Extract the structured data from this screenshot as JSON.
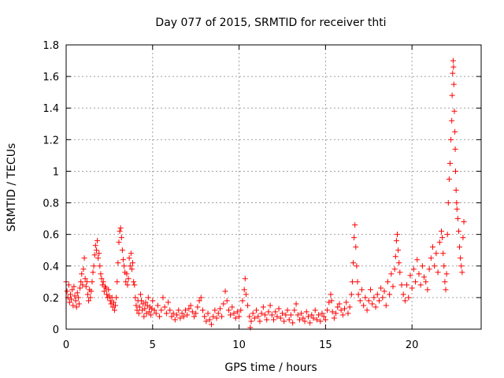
{
  "chart_data": {
    "type": "scatter",
    "title": "Day 077 of 2015, SRMTID for receiver thti",
    "xlabel": "GPS time / hours",
    "ylabel": "SRMTID / TECUs",
    "xlim": [
      0,
      24
    ],
    "ylim": [
      0,
      1.8
    ],
    "xticks": [
      0,
      5,
      10,
      15,
      20
    ],
    "xtick_labels": [
      "0",
      "5",
      "10",
      "15",
      "20"
    ],
    "yticks": [
      0,
      0.2,
      0.4,
      0.6,
      0.8,
      1.0,
      1.2,
      1.4,
      1.6,
      1.8
    ],
    "ytick_labels": [
      "0",
      "0.2",
      "0.4",
      "0.6",
      "0.8",
      "1",
      "1.2",
      "1.4",
      "1.6",
      "1.8"
    ],
    "grid": true,
    "marker": "+",
    "color": "#ff0000",
    "series": [
      {
        "name": "thti",
        "points": [
          [
            0.0,
            0.3
          ],
          [
            0.05,
            0.24
          ],
          [
            0.1,
            0.2
          ],
          [
            0.15,
            0.28
          ],
          [
            0.2,
            0.17
          ],
          [
            0.25,
            0.22
          ],
          [
            0.3,
            0.19
          ],
          [
            0.35,
            0.25
          ],
          [
            0.4,
            0.15
          ],
          [
            0.45,
            0.27
          ],
          [
            0.5,
            0.21
          ],
          [
            0.55,
            0.18
          ],
          [
            0.6,
            0.14
          ],
          [
            0.65,
            0.23
          ],
          [
            0.7,
            0.2
          ],
          [
            0.75,
            0.16
          ],
          [
            0.8,
            0.26
          ],
          [
            0.85,
            0.3
          ],
          [
            0.9,
            0.35
          ],
          [
            0.95,
            0.28
          ],
          [
            1.0,
            0.38
          ],
          [
            1.05,
            0.45
          ],
          [
            1.1,
            0.32
          ],
          [
            1.15,
            0.27
          ],
          [
            1.2,
            0.3
          ],
          [
            1.25,
            0.22
          ],
          [
            1.3,
            0.18
          ],
          [
            1.35,
            0.25
          ],
          [
            1.4,
            0.2
          ],
          [
            1.45,
            0.24
          ],
          [
            1.5,
            0.3
          ],
          [
            1.55,
            0.36
          ],
          [
            1.6,
            0.4
          ],
          [
            1.65,
            0.47
          ],
          [
            1.7,
            0.53
          ],
          [
            1.75,
            0.5
          ],
          [
            1.8,
            0.56
          ],
          [
            1.85,
            0.45
          ],
          [
            1.9,
            0.48
          ],
          [
            1.95,
            0.4
          ],
          [
            2.0,
            0.35
          ],
          [
            2.05,
            0.32
          ],
          [
            2.1,
            0.28
          ],
          [
            2.15,
            0.3
          ],
          [
            2.2,
            0.24
          ],
          [
            2.25,
            0.27
          ],
          [
            2.3,
            0.26
          ],
          [
            2.35,
            0.22
          ],
          [
            2.4,
            0.2
          ],
          [
            2.45,
            0.25
          ],
          [
            2.5,
            0.21
          ],
          [
            2.55,
            0.18
          ],
          [
            2.6,
            0.16
          ],
          [
            2.65,
            0.2
          ],
          [
            2.7,
            0.14
          ],
          [
            2.75,
            0.17
          ],
          [
            2.8,
            0.12
          ],
          [
            2.85,
            0.15
          ],
          [
            2.9,
            0.2
          ],
          [
            2.95,
            0.3
          ],
          [
            3.0,
            0.42
          ],
          [
            3.05,
            0.55
          ],
          [
            3.1,
            0.62
          ],
          [
            3.15,
            0.64
          ],
          [
            3.2,
            0.58
          ],
          [
            3.25,
            0.5
          ],
          [
            3.3,
            0.44
          ],
          [
            3.35,
            0.4
          ],
          [
            3.4,
            0.36
          ],
          [
            3.45,
            0.3
          ],
          [
            3.5,
            0.35
          ],
          [
            3.55,
            0.28
          ],
          [
            3.6,
            0.32
          ],
          [
            3.65,
            0.45
          ],
          [
            3.7,
            0.4
          ],
          [
            3.75,
            0.48
          ],
          [
            3.8,
            0.38
          ],
          [
            3.85,
            0.42
          ],
          [
            3.9,
            0.3
          ],
          [
            3.95,
            0.28
          ],
          [
            4.0,
            0.2
          ],
          [
            4.05,
            0.15
          ],
          [
            4.1,
            0.12
          ],
          [
            4.15,
            0.18
          ],
          [
            4.2,
            0.1
          ],
          [
            4.25,
            0.14
          ],
          [
            4.3,
            0.22
          ],
          [
            4.35,
            0.18
          ],
          [
            4.4,
            0.12
          ],
          [
            4.45,
            0.16
          ],
          [
            4.5,
            0.08
          ],
          [
            4.55,
            0.13
          ],
          [
            4.6,
            0.17
          ],
          [
            4.65,
            0.1
          ],
          [
            4.7,
            0.15
          ],
          [
            4.75,
            0.2
          ],
          [
            4.8,
            0.11
          ],
          [
            4.85,
            0.14
          ],
          [
            4.9,
            0.09
          ],
          [
            4.95,
            0.13
          ],
          [
            5.0,
            0.18
          ],
          [
            5.1,
            0.12
          ],
          [
            5.2,
            0.1
          ],
          [
            5.3,
            0.15
          ],
          [
            5.4,
            0.08
          ],
          [
            5.5,
            0.12
          ],
          [
            5.6,
            0.2
          ],
          [
            5.7,
            0.14
          ],
          [
            5.8,
            0.1
          ],
          [
            5.9,
            0.17
          ],
          [
            6.0,
            0.12
          ],
          [
            6.1,
            0.08
          ],
          [
            6.2,
            0.1
          ],
          [
            6.3,
            0.06
          ],
          [
            6.4,
            0.09
          ],
          [
            6.5,
            0.12
          ],
          [
            6.6,
            0.07
          ],
          [
            6.7,
            0.1
          ],
          [
            6.8,
            0.08
          ],
          [
            6.9,
            0.12
          ],
          [
            7.0,
            0.09
          ],
          [
            7.1,
            0.13
          ],
          [
            7.2,
            0.15
          ],
          [
            7.3,
            0.11
          ],
          [
            7.4,
            0.08
          ],
          [
            7.5,
            0.1
          ],
          [
            7.6,
            0.14
          ],
          [
            7.7,
            0.18
          ],
          [
            7.8,
            0.2
          ],
          [
            7.9,
            0.12
          ],
          [
            8.0,
            0.08
          ],
          [
            8.1,
            0.05
          ],
          [
            8.2,
            0.1
          ],
          [
            8.3,
            0.06
          ],
          [
            8.4,
            0.03
          ],
          [
            8.5,
            0.08
          ],
          [
            8.6,
            0.12
          ],
          [
            8.7,
            0.07
          ],
          [
            8.8,
            0.1
          ],
          [
            8.9,
            0.13
          ],
          [
            9.0,
            0.08
          ],
          [
            9.1,
            0.16
          ],
          [
            9.2,
            0.24
          ],
          [
            9.3,
            0.18
          ],
          [
            9.4,
            0.12
          ],
          [
            9.5,
            0.09
          ],
          [
            9.6,
            0.14
          ],
          [
            9.7,
            0.1
          ],
          [
            9.8,
            0.07
          ],
          [
            9.9,
            0.11
          ],
          [
            10.0,
            0.08
          ],
          [
            10.1,
            0.12
          ],
          [
            10.2,
            0.18
          ],
          [
            10.3,
            0.25
          ],
          [
            10.35,
            0.32
          ],
          [
            10.4,
            0.22
          ],
          [
            10.5,
            0.15
          ],
          [
            10.6,
            0.08
          ],
          [
            10.65,
            0.01
          ],
          [
            10.7,
            0.05
          ],
          [
            10.8,
            0.1
          ],
          [
            10.9,
            0.07
          ],
          [
            11.0,
            0.12
          ],
          [
            11.1,
            0.08
          ],
          [
            11.2,
            0.05
          ],
          [
            11.3,
            0.1
          ],
          [
            11.4,
            0.14
          ],
          [
            11.5,
            0.09
          ],
          [
            11.6,
            0.06
          ],
          [
            11.7,
            0.11
          ],
          [
            11.8,
            0.15
          ],
          [
            11.9,
            0.09
          ],
          [
            12.0,
            0.06
          ],
          [
            12.1,
            0.11
          ],
          [
            12.2,
            0.08
          ],
          [
            12.3,
            0.13
          ],
          [
            12.4,
            0.07
          ],
          [
            12.5,
            0.1
          ],
          [
            12.6,
            0.05
          ],
          [
            12.7,
            0.09
          ],
          [
            12.8,
            0.12
          ],
          [
            12.9,
            0.06
          ],
          [
            13.0,
            0.09
          ],
          [
            13.1,
            0.04
          ],
          [
            13.2,
            0.12
          ],
          [
            13.3,
            0.16
          ],
          [
            13.4,
            0.09
          ],
          [
            13.5,
            0.06
          ],
          [
            13.6,
            0.1
          ],
          [
            13.7,
            0.07
          ],
          [
            13.8,
            0.05
          ],
          [
            13.9,
            0.11
          ],
          [
            14.0,
            0.08
          ],
          [
            14.1,
            0.04
          ],
          [
            14.2,
            0.09
          ],
          [
            14.3,
            0.07
          ],
          [
            14.4,
            0.12
          ],
          [
            14.5,
            0.06
          ],
          [
            14.6,
            0.09
          ],
          [
            14.7,
            0.05
          ],
          [
            14.8,
            0.1
          ],
          [
            14.9,
            0.08
          ],
          [
            15.0,
            0.06
          ],
          [
            15.1,
            0.12
          ],
          [
            15.2,
            0.17
          ],
          [
            15.3,
            0.22
          ],
          [
            15.35,
            0.18
          ],
          [
            15.4,
            0.11
          ],
          [
            15.5,
            0.07
          ],
          [
            15.6,
            0.1
          ],
          [
            15.7,
            0.14
          ],
          [
            15.8,
            0.16
          ],
          [
            15.9,
            0.12
          ],
          [
            16.0,
            0.09
          ],
          [
            16.1,
            0.13
          ],
          [
            16.2,
            0.17
          ],
          [
            16.3,
            0.1
          ],
          [
            16.4,
            0.14
          ],
          [
            16.5,
            0.22
          ],
          [
            16.55,
            0.3
          ],
          [
            16.6,
            0.42
          ],
          [
            16.65,
            0.58
          ],
          [
            16.7,
            0.66
          ],
          [
            16.75,
            0.52
          ],
          [
            16.8,
            0.4
          ],
          [
            16.85,
            0.3
          ],
          [
            16.9,
            0.22
          ],
          [
            17.0,
            0.18
          ],
          [
            17.1,
            0.25
          ],
          [
            17.2,
            0.15
          ],
          [
            17.3,
            0.2
          ],
          [
            17.4,
            0.12
          ],
          [
            17.5,
            0.18
          ],
          [
            17.6,
            0.25
          ],
          [
            17.7,
            0.16
          ],
          [
            17.8,
            0.2
          ],
          [
            17.9,
            0.14
          ],
          [
            18.0,
            0.22
          ],
          [
            18.1,
            0.18
          ],
          [
            18.2,
            0.26
          ],
          [
            18.3,
            0.2
          ],
          [
            18.4,
            0.24
          ],
          [
            18.5,
            0.15
          ],
          [
            18.6,
            0.3
          ],
          [
            18.7,
            0.22
          ],
          [
            18.8,
            0.35
          ],
          [
            18.9,
            0.27
          ],
          [
            19.0,
            0.38
          ],
          [
            19.05,
            0.46
          ],
          [
            19.1,
            0.56
          ],
          [
            19.15,
            0.6
          ],
          [
            19.2,
            0.5
          ],
          [
            19.25,
            0.42
          ],
          [
            19.3,
            0.36
          ],
          [
            19.4,
            0.28
          ],
          [
            19.5,
            0.22
          ],
          [
            19.6,
            0.18
          ],
          [
            19.7,
            0.28
          ],
          [
            19.8,
            0.2
          ],
          [
            19.9,
            0.34
          ],
          [
            20.0,
            0.26
          ],
          [
            20.1,
            0.38
          ],
          [
            20.2,
            0.3
          ],
          [
            20.3,
            0.44
          ],
          [
            20.4,
            0.35
          ],
          [
            20.5,
            0.28
          ],
          [
            20.6,
            0.4
          ],
          [
            20.7,
            0.33
          ],
          [
            20.8,
            0.3
          ],
          [
            20.9,
            0.25
          ],
          [
            21.0,
            0.38
          ],
          [
            21.1,
            0.45
          ],
          [
            21.2,
            0.52
          ],
          [
            21.3,
            0.4
          ],
          [
            21.4,
            0.48
          ],
          [
            21.5,
            0.36
          ],
          [
            21.6,
            0.55
          ],
          [
            21.7,
            0.62
          ],
          [
            21.75,
            0.58
          ],
          [
            21.8,
            0.48
          ],
          [
            21.85,
            0.4
          ],
          [
            21.9,
            0.3
          ],
          [
            21.95,
            0.25
          ],
          [
            22.0,
            0.35
          ],
          [
            22.05,
            0.6
          ],
          [
            22.1,
            0.8
          ],
          [
            22.15,
            0.95
          ],
          [
            22.2,
            1.05
          ],
          [
            22.25,
            1.2
          ],
          [
            22.3,
            1.32
          ],
          [
            22.32,
            1.48
          ],
          [
            22.35,
            1.62
          ],
          [
            22.38,
            1.7
          ],
          [
            22.4,
            1.66
          ],
          [
            22.42,
            1.55
          ],
          [
            22.45,
            1.38
          ],
          [
            22.48,
            1.25
          ],
          [
            22.5,
            1.14
          ],
          [
            22.52,
            1.0
          ],
          [
            22.55,
            0.88
          ],
          [
            22.58,
            0.8
          ],
          [
            22.6,
            0.76
          ],
          [
            22.65,
            0.7
          ],
          [
            22.7,
            0.62
          ],
          [
            22.75,
            0.52
          ],
          [
            22.8,
            0.45
          ],
          [
            22.85,
            0.4
          ],
          [
            22.9,
            0.36
          ],
          [
            22.95,
            0.58
          ],
          [
            23.0,
            0.68
          ]
        ]
      }
    ]
  }
}
